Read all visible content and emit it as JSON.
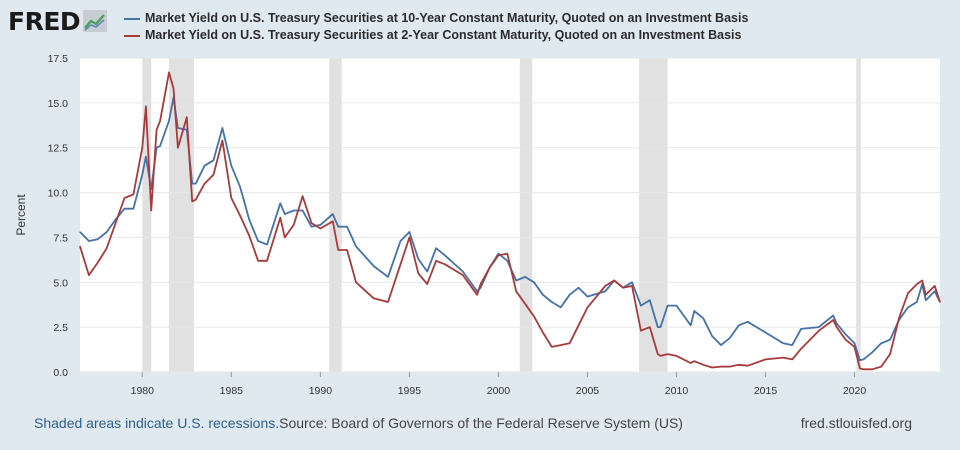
{
  "brand": {
    "logo_text": "FRED",
    "logo_icon": "line-chart-icon"
  },
  "colors": {
    "series_10y": "#4572a7",
    "series_2y": "#aa3a3a",
    "recession": "#e1e1e1",
    "grid": "#e6e6e6",
    "background": "#e1e9f0"
  },
  "footer": {
    "note": "Shaded areas indicate U.S. recessions.",
    "source": "Source: Board of Governors of the Federal Reserve System (US)",
    "url": "fred.stlouisfed.org"
  },
  "chart_data": {
    "type": "line",
    "title": "",
    "xlabel": "",
    "ylabel": "Percent",
    "xlim": [
      1976.5,
      2024.8
    ],
    "ylim": [
      0,
      17.5
    ],
    "yticks": [
      "0.0",
      "2.5",
      "5.0",
      "7.5",
      "10.0",
      "12.5",
      "15.0",
      "17.5"
    ],
    "xticks": [
      "1980",
      "1985",
      "1990",
      "1995",
      "2000",
      "2005",
      "2010",
      "2015",
      "2020"
    ],
    "grid": true,
    "legend_position": "top",
    "recessions": [
      [
        1980.0,
        1980.5
      ],
      [
        1981.5,
        1982.9
      ],
      [
        1990.5,
        1991.2
      ],
      [
        2001.2,
        2001.9
      ],
      [
        2007.9,
        2009.5
      ],
      [
        2020.1,
        2020.35
      ]
    ],
    "series": [
      {
        "name": "Market Yield on U.S. Treasury Securities at 10-Year Constant Maturity, Quoted on an Investment Basis",
        "color": "#4572a7",
        "x": [
          1976.5,
          1977.0,
          1977.5,
          1978.0,
          1978.5,
          1979.0,
          1979.5,
          1980.0,
          1980.2,
          1980.5,
          1980.8,
          1981.0,
          1981.5,
          1981.75,
          1982.0,
          1982.5,
          1982.8,
          1983.0,
          1983.5,
          1984.0,
          1984.5,
          1985.0,
          1985.5,
          1986.0,
          1986.5,
          1987.0,
          1987.75,
          1988.0,
          1988.5,
          1989.0,
          1989.5,
          1990.0,
          1990.7,
          1991.0,
          1991.5,
          1992.0,
          1993.0,
          1993.8,
          1994.5,
          1995.0,
          1995.5,
          1996.0,
          1996.5,
          1997.0,
          1998.0,
          1998.8,
          1999.0,
          1999.5,
          2000.0,
          2000.5,
          2001.0,
          2001.5,
          2002.0,
          2002.5,
          2003.0,
          2003.5,
          2004.0,
          2004.5,
          2005.0,
          2006.0,
          2006.5,
          2007.0,
          2007.5,
          2008.0,
          2008.5,
          2008.95,
          2009.1,
          2009.5,
          2010.0,
          2010.8,
          2011.0,
          2011.5,
          2012.0,
          2012.5,
          2013.0,
          2013.5,
          2014.0,
          2015.0,
          2016.0,
          2016.5,
          2017.0,
          2018.0,
          2018.8,
          2019.0,
          2019.5,
          2020.0,
          2020.3,
          2020.5,
          2021.0,
          2021.5,
          2022.0,
          2022.5,
          2023.0,
          2023.5,
          2023.8,
          2024.0,
          2024.5,
          2024.8
        ],
        "y": [
          7.8,
          7.3,
          7.4,
          7.8,
          8.5,
          9.1,
          9.1,
          11.0,
          12.0,
          10.2,
          12.5,
          12.6,
          14.0,
          15.3,
          13.6,
          13.5,
          10.5,
          10.5,
          11.5,
          11.8,
          13.6,
          11.5,
          10.3,
          8.5,
          7.3,
          7.1,
          9.4,
          8.8,
          9.0,
          9.0,
          8.1,
          8.2,
          8.8,
          8.1,
          8.1,
          7.0,
          5.9,
          5.3,
          7.3,
          7.8,
          6.3,
          5.6,
          6.9,
          6.5,
          5.6,
          4.5,
          4.7,
          5.8,
          6.6,
          6.2,
          5.1,
          5.3,
          5.0,
          4.3,
          3.9,
          3.6,
          4.3,
          4.7,
          4.2,
          4.5,
          5.1,
          4.7,
          5.0,
          3.7,
          4.0,
          2.5,
          2.5,
          3.7,
          3.7,
          2.6,
          3.4,
          3.0,
          2.0,
          1.5,
          1.9,
          2.6,
          2.8,
          2.2,
          1.6,
          1.5,
          2.4,
          2.5,
          3.15,
          2.7,
          2.1,
          1.6,
          0.65,
          0.7,
          1.1,
          1.6,
          1.8,
          2.9,
          3.6,
          3.9,
          4.9,
          4.0,
          4.5,
          3.9
        ]
      },
      {
        "name": "Market Yield on U.S. Treasury Securities at 2-Year Constant Maturity, Quoted on an Investment Basis",
        "color": "#aa3a3a",
        "x": [
          1976.5,
          1977.0,
          1977.5,
          1978.0,
          1978.5,
          1979.0,
          1979.5,
          1980.0,
          1980.2,
          1980.5,
          1980.8,
          1981.0,
          1981.5,
          1981.75,
          1982.0,
          1982.5,
          1982.8,
          1983.0,
          1983.5,
          1984.0,
          1984.5,
          1985.0,
          1985.5,
          1986.0,
          1986.5,
          1987.0,
          1987.75,
          1988.0,
          1988.5,
          1989.0,
          1989.5,
          1990.0,
          1990.7,
          1991.0,
          1991.5,
          1992.0,
          1993.0,
          1993.8,
          1994.5,
          1995.0,
          1995.5,
          1996.0,
          1996.5,
          1997.0,
          1998.0,
          1998.8,
          1999.0,
          1999.5,
          2000.0,
          2000.5,
          2001.0,
          2001.5,
          2002.0,
          2002.5,
          2003.0,
          2003.5,
          2004.0,
          2004.5,
          2005.0,
          2006.0,
          2006.5,
          2007.0,
          2007.5,
          2008.0,
          2008.5,
          2008.95,
          2009.1,
          2009.5,
          2010.0,
          2010.8,
          2011.0,
          2011.5,
          2012.0,
          2012.5,
          2013.0,
          2013.5,
          2014.0,
          2015.0,
          2016.0,
          2016.5,
          2017.0,
          2018.0,
          2018.8,
          2019.0,
          2019.5,
          2020.0,
          2020.3,
          2020.5,
          2021.0,
          2021.5,
          2022.0,
          2022.5,
          2023.0,
          2023.5,
          2023.8,
          2024.0,
          2024.5,
          2024.8
        ],
        "y": [
          7.0,
          5.4,
          6.1,
          6.9,
          8.3,
          9.7,
          9.9,
          12.5,
          14.8,
          9.0,
          13.5,
          14.0,
          16.7,
          15.8,
          12.5,
          14.2,
          9.5,
          9.6,
          10.5,
          11.0,
          12.9,
          9.7,
          8.7,
          7.6,
          6.2,
          6.2,
          8.6,
          7.5,
          8.2,
          9.8,
          8.3,
          8.0,
          8.4,
          6.8,
          6.8,
          5.0,
          4.1,
          3.9,
          6.0,
          7.5,
          5.5,
          4.9,
          6.2,
          6.0,
          5.4,
          4.3,
          4.9,
          5.8,
          6.5,
          6.6,
          4.5,
          3.8,
          3.1,
          2.2,
          1.4,
          1.5,
          1.6,
          2.6,
          3.6,
          4.8,
          5.1,
          4.7,
          4.8,
          2.3,
          2.5,
          1.0,
          0.9,
          1.0,
          0.9,
          0.5,
          0.6,
          0.4,
          0.25,
          0.3,
          0.3,
          0.4,
          0.35,
          0.7,
          0.8,
          0.7,
          1.3,
          2.3,
          2.9,
          2.5,
          1.8,
          1.4,
          0.2,
          0.15,
          0.15,
          0.3,
          1.0,
          3.0,
          4.4,
          4.9,
          5.1,
          4.3,
          4.8,
          3.9
        ]
      }
    ]
  }
}
